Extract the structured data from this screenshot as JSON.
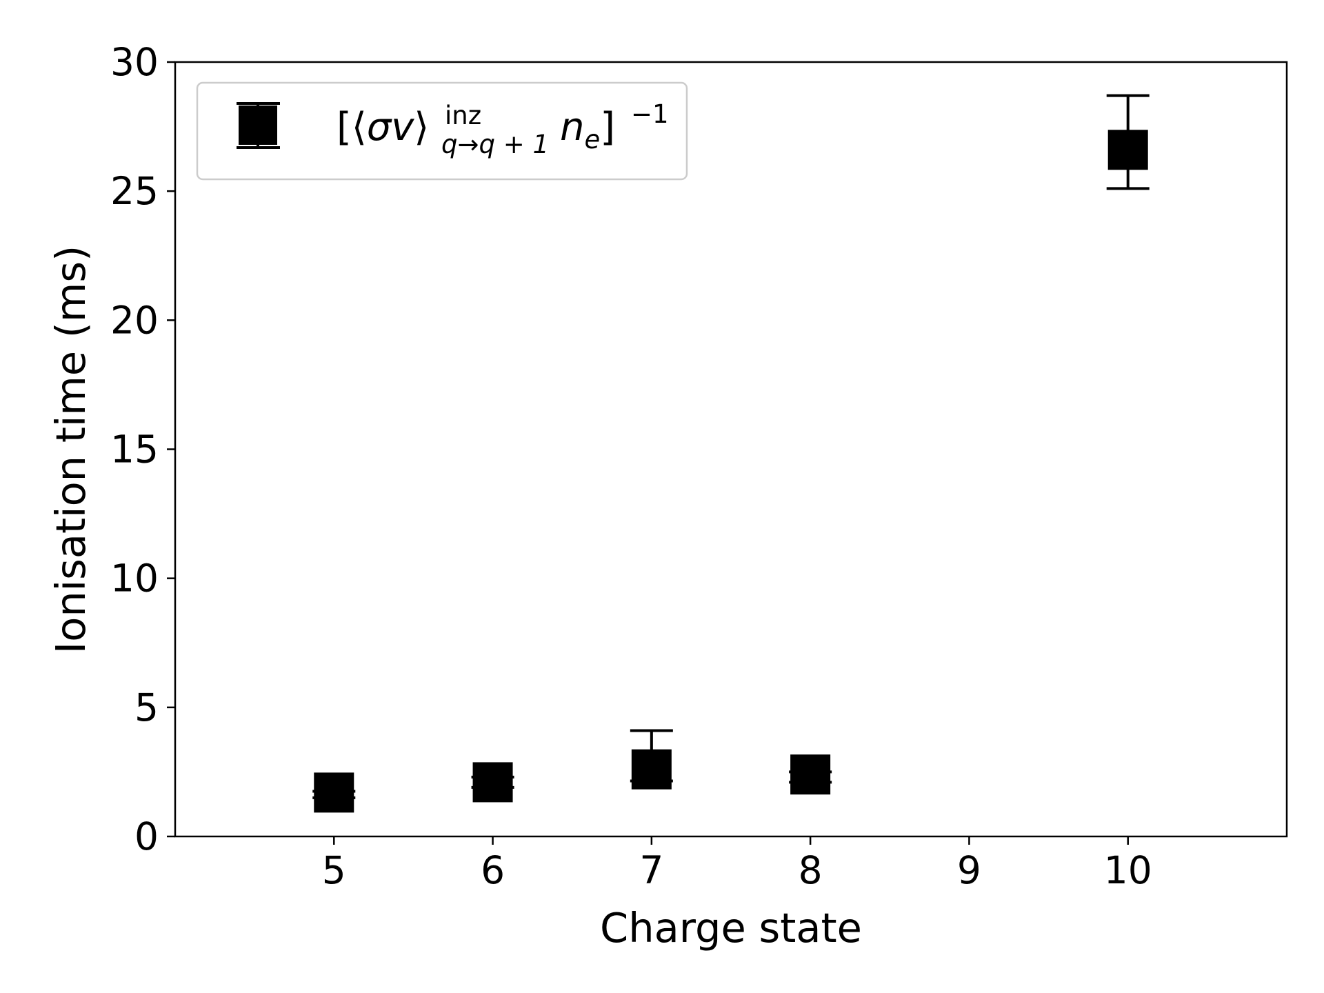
{
  "chart_data": {
    "type": "scatter",
    "xlabel": "Charge state",
    "ylabel": "Ionisation time (ms)",
    "xlim": [
      4,
      11
    ],
    "ylim": [
      0,
      30
    ],
    "xticks": [
      5,
      6,
      7,
      8,
      9,
      10
    ],
    "yticks": [
      0,
      5,
      10,
      15,
      20,
      25,
      30
    ],
    "grid": false,
    "legend_position": "top-left",
    "marker": "square",
    "color": "#000000",
    "series": [
      {
        "name": "[⟨σv⟩ inz q→q+1 n_e]^-1",
        "legend": {
          "open": "[⟨",
          "sigma": "σ",
          "v": "v",
          "close_angle": "⟩",
          "sup": "inz",
          "sub": "q→q + 1",
          "n": "n",
          "e": "e",
          "bracket": "]",
          "exponent": "−1"
        },
        "points": [
          {
            "x": 5,
            "y": 1.7,
            "y_low": 1.5,
            "y_high": 1.75
          },
          {
            "x": 6,
            "y": 2.1,
            "y_low": 1.9,
            "y_high": 2.3
          },
          {
            "x": 7,
            "y": 2.6,
            "y_low": 2.15,
            "y_high": 4.1
          },
          {
            "x": 8,
            "y": 2.4,
            "y_low": 2.1,
            "y_high": 2.5
          },
          {
            "x": 10,
            "y": 26.6,
            "y_low": 25.1,
            "y_high": 28.7
          }
        ]
      }
    ]
  }
}
